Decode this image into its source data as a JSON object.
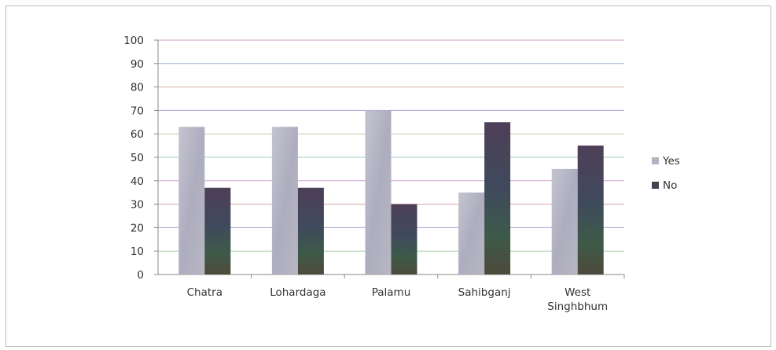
{
  "chart_data": {
    "type": "bar",
    "categories": [
      "Chatra",
      "Lohardaga",
      "Palamu",
      "Sahibganj",
      "West Singhbhum"
    ],
    "category_lines": [
      [
        "Chatra"
      ],
      [
        "Lohardaga"
      ],
      [
        "Palamu"
      ],
      [
        "Sahibganj"
      ],
      [
        "West",
        "Singhbhum"
      ]
    ],
    "series": [
      {
        "name": "Yes",
        "values": [
          63,
          63,
          70,
          35,
          45
        ],
        "color": "#b3b3c4"
      },
      {
        "name": "No",
        "values": [
          37,
          37,
          30,
          65,
          55
        ],
        "color": "#4a3f52"
      }
    ],
    "title": "",
    "xlabel": "",
    "ylabel": "",
    "ylim": [
      0,
      100
    ],
    "yticks": [
      0,
      10,
      20,
      30,
      40,
      50,
      60,
      70,
      80,
      90,
      100
    ],
    "grid": true,
    "legend_position": "right"
  }
}
